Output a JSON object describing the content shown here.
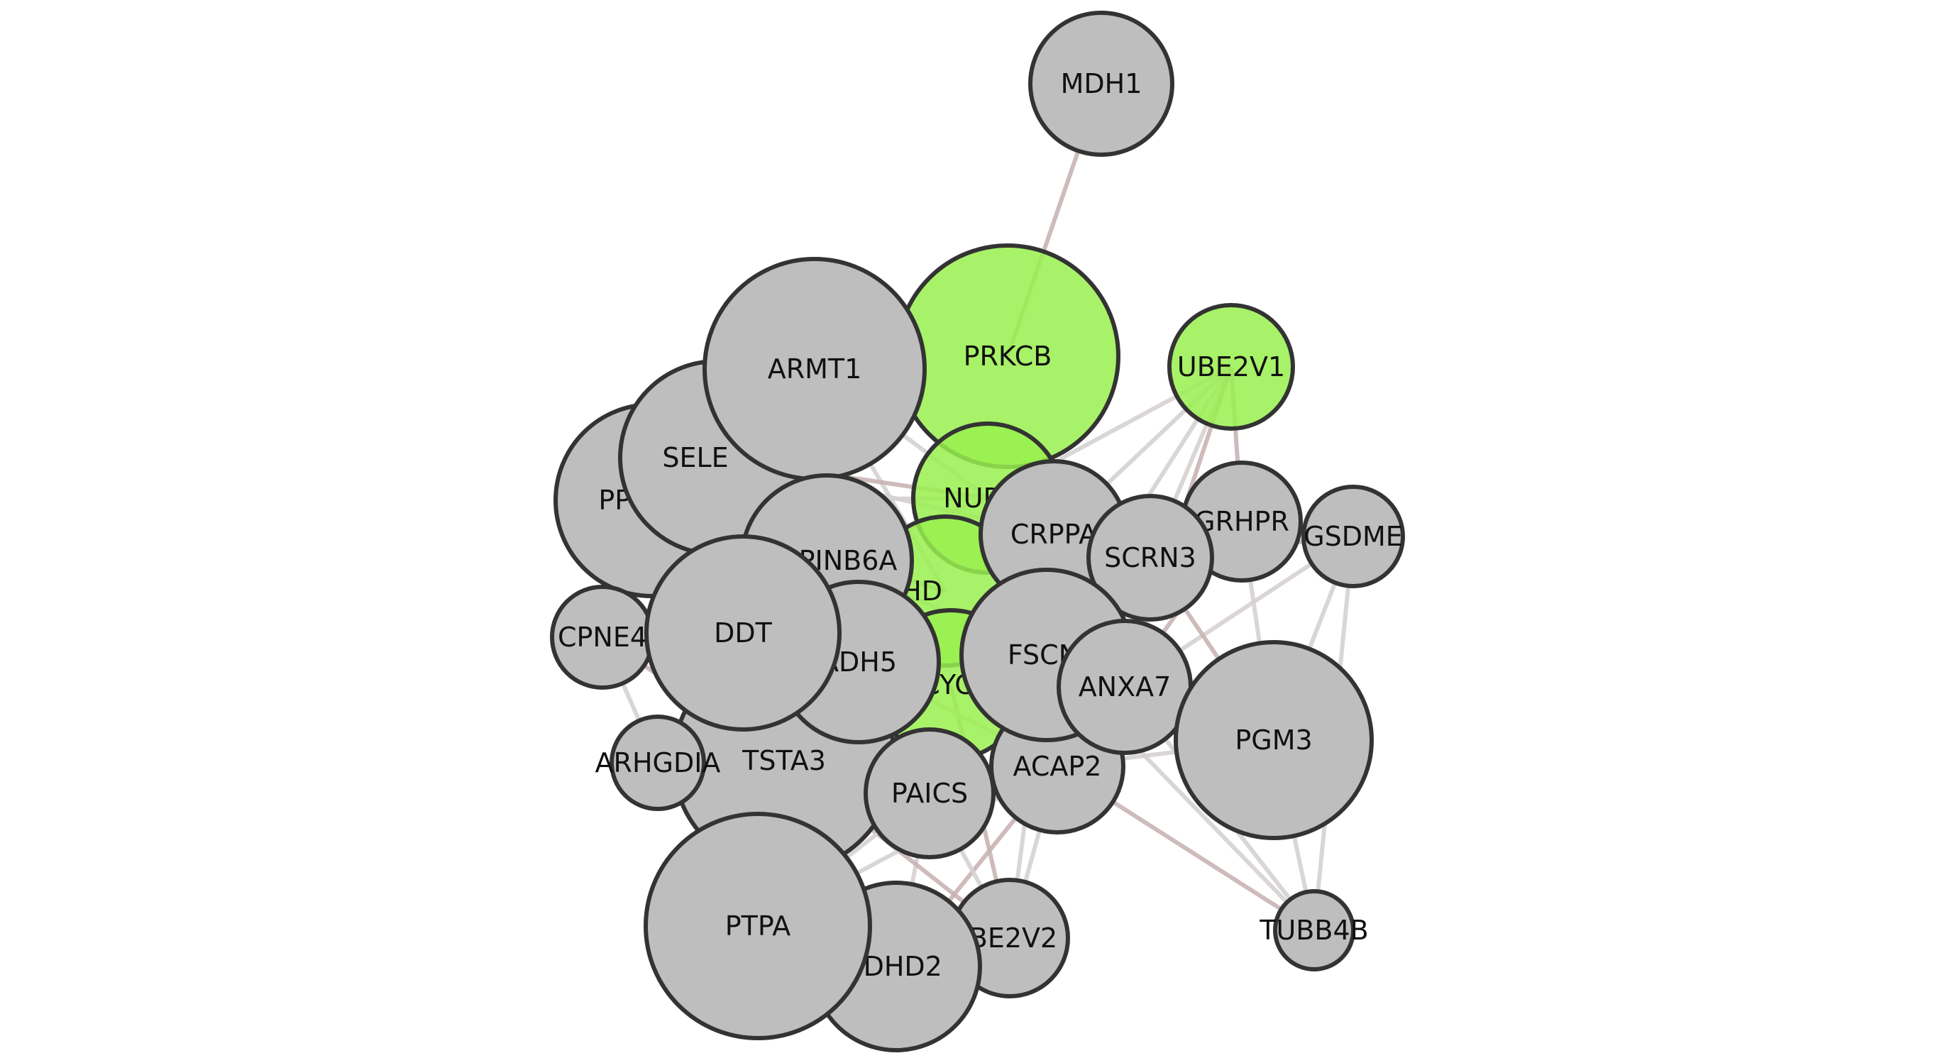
{
  "diagram": {
    "type": "network",
    "colors": {
      "highlight": "#99f04f",
      "default": "#bebebe",
      "edge_gray": "#d6d2d2",
      "edge_rose": "#c9b4b4",
      "outline": "#333333"
    },
    "nodes": [
      {
        "id": "MDH1",
        "label": "MDH1",
        "highlighted": false
      },
      {
        "id": "PRKCB",
        "label": "PRKCB",
        "highlighted": true
      },
      {
        "id": "UBE2V1",
        "label": "UBE2V1",
        "highlighted": true
      },
      {
        "id": "ARMT1",
        "label": "ARMT1",
        "highlighted": false
      },
      {
        "id": "SELENBP1",
        "label": "SELE",
        "highlighted": false
      },
      {
        "id": "PPP1R",
        "label": "PPP1R",
        "highlighted": false
      },
      {
        "id": "NUDT",
        "label": "NUD",
        "highlighted": true
      },
      {
        "id": "SHD",
        "label": "SHD",
        "highlighted": true
      },
      {
        "id": "CYC",
        "label": "CYC",
        "highlighted": true
      },
      {
        "id": "CRPPA",
        "label": "CRPPA",
        "highlighted": false
      },
      {
        "id": "SCRN3",
        "label": "SCRN3",
        "highlighted": false
      },
      {
        "id": "GRHPR",
        "label": "GRHPR",
        "highlighted": false
      },
      {
        "id": "GSDME",
        "label": "GSDME",
        "highlighted": false
      },
      {
        "id": "SERPINB6A",
        "label": "PINB6A",
        "highlighted": false
      },
      {
        "id": "CPNE4",
        "label": "CPNE4",
        "highlighted": false
      },
      {
        "id": "DDT",
        "label": "DDT",
        "highlighted": false
      },
      {
        "id": "ADH5",
        "label": "ADH5",
        "highlighted": false
      },
      {
        "id": "FSCN",
        "label": "FSCN",
        "highlighted": false
      },
      {
        "id": "ANXA7",
        "label": "ANXA7",
        "highlighted": false
      },
      {
        "id": "PGM3",
        "label": "PGM3",
        "highlighted": false
      },
      {
        "id": "ARHGDIA",
        "label": "ARHGDIA",
        "highlighted": false
      },
      {
        "id": "TSTA3",
        "label": "TSTA3",
        "highlighted": false
      },
      {
        "id": "PAICS",
        "label": "PAICS",
        "highlighted": false
      },
      {
        "id": "ACAP2",
        "label": "ACAP2",
        "highlighted": false
      },
      {
        "id": "UBE2V2",
        "label": "BE2V2",
        "highlighted": false
      },
      {
        "id": "NDHD2",
        "label": "NDHD2",
        "highlighted": false
      },
      {
        "id": "PTPA",
        "label": "PTPA",
        "highlighted": false
      },
      {
        "id": "TUBB4B",
        "label": "TUBB4B",
        "highlighted": false
      }
    ],
    "edges": [
      [
        "MDH1",
        "PRKCB"
      ],
      [
        "UBE2V1",
        "CRPPA"
      ],
      [
        "UBE2V1",
        "SCRN3"
      ],
      [
        "UBE2V1",
        "GRHPR"
      ],
      [
        "UBE2V1",
        "NUDT"
      ],
      [
        "UBE2V1",
        "FSCN"
      ],
      [
        "UBE2V1",
        "ANXA7"
      ],
      [
        "GSDME",
        "PGM3"
      ],
      [
        "GSDME",
        "TUBB4B"
      ],
      [
        "GSDME",
        "SCRN3"
      ],
      [
        "GSDME",
        "ANXA7"
      ],
      [
        "GRHPR",
        "PGM3"
      ],
      [
        "GRHPR",
        "ANXA7"
      ],
      [
        "PGM3",
        "TUBB4B"
      ],
      [
        "PGM3",
        "ACAP2"
      ],
      [
        "PGM3",
        "SCRN3"
      ],
      [
        "PGM3",
        "FSCN"
      ],
      [
        "ANXA7",
        "TUBB4B"
      ],
      [
        "ACAP2",
        "TUBB4B"
      ],
      [
        "FSCN",
        "TUBB4B"
      ],
      [
        "ACAP2",
        "UBE2V2"
      ],
      [
        "ACAP2",
        "NDHD2"
      ],
      [
        "PAICS",
        "UBE2V2"
      ],
      [
        "PAICS",
        "NDHD2"
      ],
      [
        "CYC",
        "UBE2V2"
      ],
      [
        "FSCN",
        "UBE2V2"
      ],
      [
        "TSTA3",
        "NDHD2"
      ],
      [
        "TSTA3",
        "UBE2V2"
      ],
      [
        "PTPA",
        "ACAP2"
      ],
      [
        "PTPA",
        "PAICS"
      ],
      [
        "CPNE4",
        "TSTA3"
      ],
      [
        "CPNE4",
        "ARHGDIA"
      ],
      [
        "ARHGDIA",
        "DDT"
      ],
      [
        "ARHGDIA",
        "TSTA3"
      ],
      [
        "ARMT1",
        "NUDT"
      ],
      [
        "ARMT1",
        "SHD"
      ],
      [
        "SELENBP1",
        "NUDT"
      ],
      [
        "SELENBP1",
        "CRPPA"
      ],
      [
        "PPP1R",
        "NUDT"
      ],
      [
        "PPP1R",
        "SHD"
      ],
      [
        "SERPINB6A",
        "NUDT"
      ],
      [
        "SERPINB6A",
        "FSCN"
      ],
      [
        "DDT",
        "PAICS"
      ],
      [
        "ADH5",
        "ACAP2"
      ],
      [
        "SCRN3",
        "ANXA7"
      ],
      [
        "CRPPA",
        "GRHPR"
      ]
    ]
  }
}
